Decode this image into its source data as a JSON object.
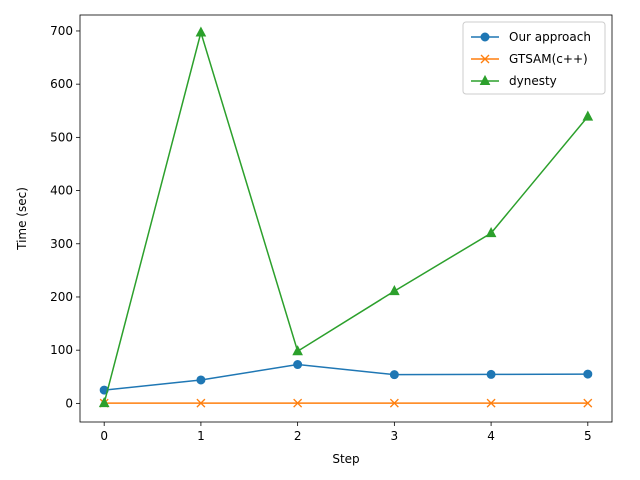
{
  "chart_data": {
    "type": "line",
    "title": "",
    "xlabel": "Step",
    "ylabel": "Time (sec)",
    "x": [
      0,
      1,
      2,
      3,
      4,
      5
    ],
    "xlim": [
      -0.25,
      5.25
    ],
    "ylim": [
      -35,
      730
    ],
    "xticks": [
      0,
      1,
      2,
      3,
      4,
      5
    ],
    "yticks": [
      0,
      100,
      200,
      300,
      400,
      500,
      600,
      700
    ],
    "grid": false,
    "legend_position": "top-right",
    "series": [
      {
        "name": "Our approach",
        "color": "#1f77b4",
        "marker": "circle",
        "values": [
          25,
          44,
          73,
          54,
          54.5,
          55
        ]
      },
      {
        "name": "GTSAM(c++)",
        "color": "#ff7f0e",
        "marker": "x",
        "values": [
          0.5,
          0.5,
          0.5,
          0.5,
          0.5,
          0.5
        ]
      },
      {
        "name": "dynesty",
        "color": "#2ca02c",
        "marker": "triangle",
        "values": [
          0.5,
          697,
          98,
          211,
          320,
          539
        ]
      }
    ]
  }
}
